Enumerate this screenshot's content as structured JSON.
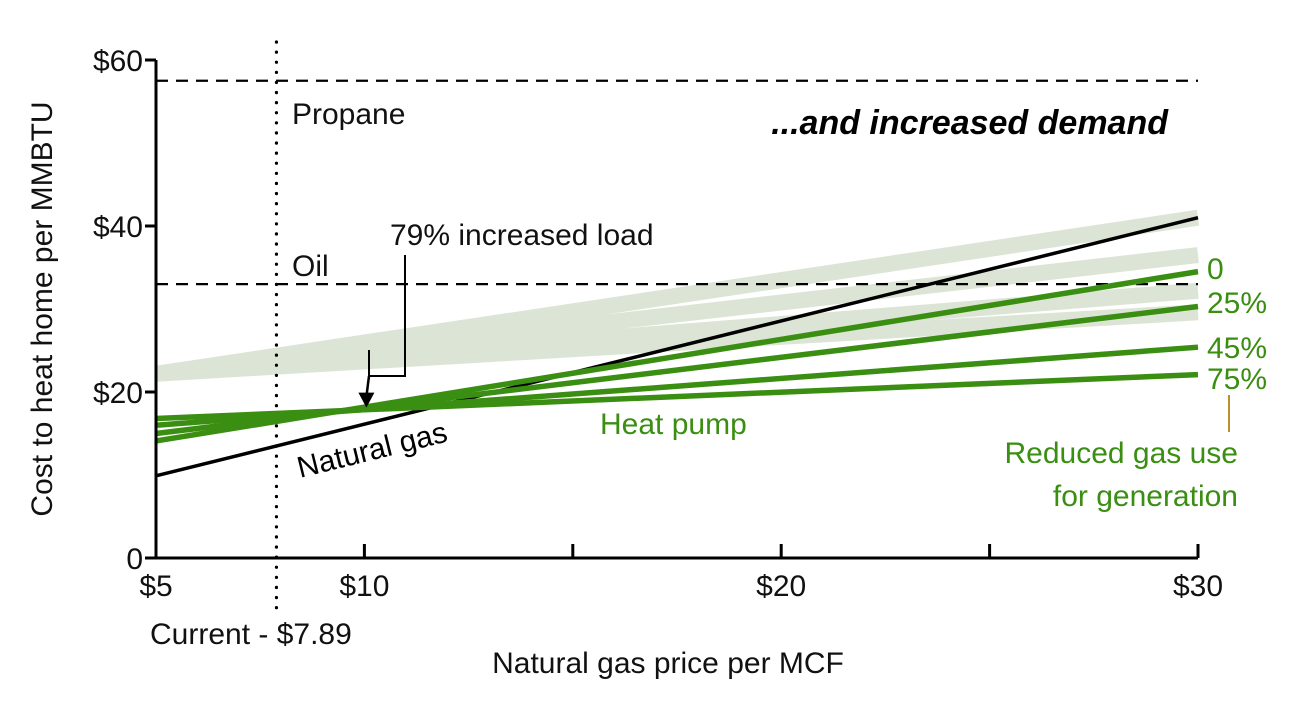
{
  "chart_data": {
    "type": "line",
    "title": "...and increased demand",
    "xlabel": "Natural gas price per MCF",
    "ylabel": "Cost to heat  home per MMBTU",
    "xlim": [
      5,
      30
    ],
    "ylim": [
      0,
      60
    ],
    "x_ticks": [
      {
        "value": 5,
        "label": "$5"
      },
      {
        "value": 10,
        "label": "$10"
      },
      {
        "value": 15,
        "label": ""
      },
      {
        "value": 20,
        "label": "$20"
      },
      {
        "value": 25,
        "label": ""
      },
      {
        "value": 30,
        "label": "$30"
      }
    ],
    "y_ticks": [
      {
        "value": 0,
        "label": "0"
      },
      {
        "value": 20,
        "label": "$20"
      },
      {
        "value": 40,
        "label": "$40"
      },
      {
        "value": 60,
        "label": "$60"
      }
    ],
    "grid": false,
    "reference_lines": [
      {
        "name": "Propane",
        "y": 57.5,
        "style": "dashed"
      },
      {
        "name": "Oil",
        "y": 33,
        "style": "dashed"
      }
    ],
    "current_price": {
      "label": "Current - $7.89",
      "x": 7.89,
      "style": "dotted"
    },
    "baseline_bands": [
      {
        "x": [
          5,
          30
        ],
        "y": [
          22.2,
          41
        ]
      },
      {
        "x": [
          5,
          30
        ],
        "y": [
          22.2,
          36.5
        ]
      },
      {
        "x": [
          5,
          30
        ],
        "y": [
          22.2,
          32.2
        ]
      },
      {
        "x": [
          5,
          30
        ],
        "y": [
          22.2,
          29.6
        ]
      }
    ],
    "series": [
      {
        "name": "Natural gas",
        "x": [
          5,
          30
        ],
        "y": [
          9.9,
          41
        ]
      },
      {
        "name": "0",
        "x": [
          5,
          30
        ],
        "y": [
          14.1,
          34.5
        ]
      },
      {
        "name": "25%",
        "x": [
          5,
          30
        ],
        "y": [
          15.0,
          30.3
        ]
      },
      {
        "name": "45%",
        "x": [
          5,
          30
        ],
        "y": [
          16.0,
          25.4
        ]
      },
      {
        "name": "75%",
        "x": [
          5,
          30
        ],
        "y": [
          16.8,
          22.1
        ]
      }
    ],
    "heat_pump_label": "Heat pump",
    "group_label": [
      "Reduced gas use",
      "for generation"
    ],
    "annotation": {
      "text": "79% increased load",
      "x": 10,
      "y": 18
    },
    "colors": {
      "natural_gas": "#000000",
      "heat_pump": "#3a8e12",
      "band": "#dce5d5",
      "axis": "#000000",
      "leader": "#b8912e"
    }
  }
}
